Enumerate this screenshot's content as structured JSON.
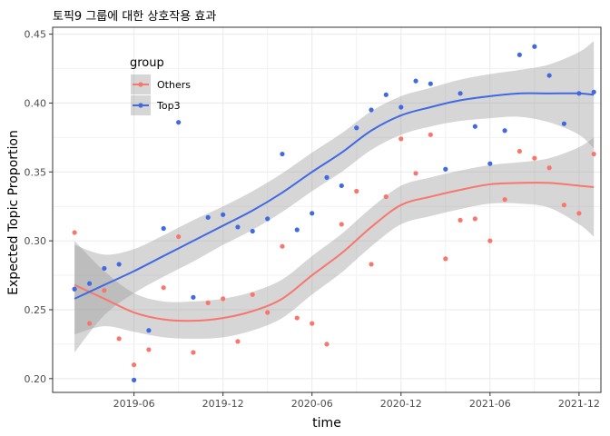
{
  "chart_data": {
    "type": "scatter",
    "title": "토픽9 그룹에 대한 상호작용 효과",
    "xlabel": "time",
    "ylabel": "Expected Topic Proportion",
    "xlim": [
      2018.96,
      2022.04
    ],
    "ylim": [
      0.19,
      0.455
    ],
    "xticks": [
      {
        "value": 2019.417,
        "label": "2019-06"
      },
      {
        "value": 2019.917,
        "label": "2019-12"
      },
      {
        "value": 2020.417,
        "label": "2020-06"
      },
      {
        "value": 2020.917,
        "label": "2020-12"
      },
      {
        "value": 2021.417,
        "label": "2021-06"
      },
      {
        "value": 2021.917,
        "label": "2021-12"
      }
    ],
    "yticks": [
      0.2,
      0.25,
      0.3,
      0.35,
      0.4,
      0.45
    ],
    "grid": true,
    "legend": {
      "title": "group",
      "position": "top-left"
    },
    "series": [
      {
        "name": "Others",
        "color": "#F8766D",
        "points": [
          [
            2019.083,
            0.306
          ],
          [
            2019.167,
            0.24
          ],
          [
            2019.25,
            0.264
          ],
          [
            2019.333,
            0.229
          ],
          [
            2019.417,
            0.21
          ],
          [
            2019.5,
            0.221
          ],
          [
            2019.583,
            0.266
          ],
          [
            2019.667,
            0.303
          ],
          [
            2019.75,
            0.219
          ],
          [
            2019.833,
            0.255
          ],
          [
            2019.917,
            0.258
          ],
          [
            2020.0,
            0.227
          ],
          [
            2020.083,
            0.261
          ],
          [
            2020.167,
            0.248
          ],
          [
            2020.25,
            0.296
          ],
          [
            2020.333,
            0.244
          ],
          [
            2020.417,
            0.24
          ],
          [
            2020.5,
            0.225
          ],
          [
            2020.583,
            0.312
          ],
          [
            2020.667,
            0.336
          ],
          [
            2020.75,
            0.283
          ],
          [
            2020.833,
            0.332
          ],
          [
            2020.917,
            0.374
          ],
          [
            2021.0,
            0.349
          ],
          [
            2021.083,
            0.377
          ],
          [
            2021.167,
            0.287
          ],
          [
            2021.25,
            0.315
          ],
          [
            2021.333,
            0.316
          ],
          [
            2021.417,
            0.3
          ],
          [
            2021.5,
            0.33
          ],
          [
            2021.583,
            0.365
          ],
          [
            2021.667,
            0.36
          ],
          [
            2021.75,
            0.353
          ],
          [
            2021.833,
            0.326
          ],
          [
            2021.917,
            0.32
          ],
          [
            2022.0,
            0.363
          ]
        ],
        "smooth": [
          [
            2019.083,
            0.268
          ],
          [
            2019.25,
            0.258
          ],
          [
            2019.417,
            0.248
          ],
          [
            2019.583,
            0.243
          ],
          [
            2019.75,
            0.242
          ],
          [
            2019.917,
            0.244
          ],
          [
            2020.083,
            0.249
          ],
          [
            2020.25,
            0.258
          ],
          [
            2020.417,
            0.275
          ],
          [
            2020.583,
            0.291
          ],
          [
            2020.75,
            0.31
          ],
          [
            2020.917,
            0.326
          ],
          [
            2021.083,
            0.332
          ],
          [
            2021.25,
            0.337
          ],
          [
            2021.417,
            0.341
          ],
          [
            2021.583,
            0.342
          ],
          [
            2021.75,
            0.342
          ],
          [
            2021.917,
            0.34
          ],
          [
            2022.0,
            0.339
          ]
        ],
        "band_upper": [
          [
            2019.083,
            0.3
          ],
          [
            2019.25,
            0.278
          ],
          [
            2019.417,
            0.262
          ],
          [
            2019.583,
            0.256
          ],
          [
            2019.75,
            0.256
          ],
          [
            2019.917,
            0.258
          ],
          [
            2020.083,
            0.263
          ],
          [
            2020.25,
            0.272
          ],
          [
            2020.417,
            0.289
          ],
          [
            2020.583,
            0.305
          ],
          [
            2020.75,
            0.324
          ],
          [
            2020.917,
            0.34
          ],
          [
            2021.083,
            0.346
          ],
          [
            2021.25,
            0.351
          ],
          [
            2021.417,
            0.355
          ],
          [
            2021.583,
            0.357
          ],
          [
            2021.75,
            0.36
          ],
          [
            2021.917,
            0.368
          ],
          [
            2022.0,
            0.375
          ]
        ],
        "band_lower": [
          [
            2019.083,
            0.232
          ],
          [
            2019.25,
            0.238
          ],
          [
            2019.417,
            0.234
          ],
          [
            2019.583,
            0.23
          ],
          [
            2019.75,
            0.229
          ],
          [
            2019.917,
            0.23
          ],
          [
            2020.083,
            0.235
          ],
          [
            2020.25,
            0.244
          ],
          [
            2020.417,
            0.261
          ],
          [
            2020.583,
            0.277
          ],
          [
            2020.75,
            0.296
          ],
          [
            2020.917,
            0.312
          ],
          [
            2021.083,
            0.318
          ],
          [
            2021.25,
            0.323
          ],
          [
            2021.417,
            0.327
          ],
          [
            2021.583,
            0.327
          ],
          [
            2021.75,
            0.324
          ],
          [
            2021.917,
            0.312
          ],
          [
            2022.0,
            0.303
          ]
        ]
      },
      {
        "name": "Top3",
        "color": "#4169E1",
        "points": [
          [
            2019.083,
            0.265
          ],
          [
            2019.167,
            0.269
          ],
          [
            2019.25,
            0.28
          ],
          [
            2019.333,
            0.283
          ],
          [
            2019.417,
            0.199
          ],
          [
            2019.5,
            0.235
          ],
          [
            2019.583,
            0.309
          ],
          [
            2019.667,
            0.386
          ],
          [
            2019.75,
            0.259
          ],
          [
            2019.833,
            0.317
          ],
          [
            2019.917,
            0.319
          ],
          [
            2020.0,
            0.31
          ],
          [
            2020.083,
            0.307
          ],
          [
            2020.167,
            0.316
          ],
          [
            2020.25,
            0.363
          ],
          [
            2020.333,
            0.308
          ],
          [
            2020.417,
            0.32
          ],
          [
            2020.5,
            0.346
          ],
          [
            2020.583,
            0.34
          ],
          [
            2020.667,
            0.382
          ],
          [
            2020.75,
            0.395
          ],
          [
            2020.833,
            0.406
          ],
          [
            2020.917,
            0.397
          ],
          [
            2021.0,
            0.416
          ],
          [
            2021.083,
            0.414
          ],
          [
            2021.167,
            0.352
          ],
          [
            2021.25,
            0.407
          ],
          [
            2021.333,
            0.383
          ],
          [
            2021.417,
            0.356
          ],
          [
            2021.5,
            0.38
          ],
          [
            2021.583,
            0.435
          ],
          [
            2021.667,
            0.441
          ],
          [
            2021.75,
            0.42
          ],
          [
            2021.833,
            0.385
          ],
          [
            2021.917,
            0.407
          ],
          [
            2022.0,
            0.408
          ]
        ],
        "smooth": [
          [
            2019.083,
            0.258
          ],
          [
            2019.25,
            0.268
          ],
          [
            2019.417,
            0.278
          ],
          [
            2019.583,
            0.289
          ],
          [
            2019.75,
            0.3
          ],
          [
            2019.917,
            0.311
          ],
          [
            2020.083,
            0.322
          ],
          [
            2020.25,
            0.335
          ],
          [
            2020.417,
            0.35
          ],
          [
            2020.583,
            0.364
          ],
          [
            2020.75,
            0.38
          ],
          [
            2020.917,
            0.391
          ],
          [
            2021.083,
            0.397
          ],
          [
            2021.25,
            0.402
          ],
          [
            2021.417,
            0.405
          ],
          [
            2021.583,
            0.407
          ],
          [
            2021.75,
            0.407
          ],
          [
            2021.917,
            0.407
          ],
          [
            2022.0,
            0.406
          ]
        ],
        "band_upper": [
          [
            2019.083,
            0.297
          ],
          [
            2019.25,
            0.29
          ],
          [
            2019.417,
            0.294
          ],
          [
            2019.583,
            0.304
          ],
          [
            2019.75,
            0.315
          ],
          [
            2019.917,
            0.325
          ],
          [
            2020.083,
            0.336
          ],
          [
            2020.25,
            0.349
          ],
          [
            2020.417,
            0.364
          ],
          [
            2020.583,
            0.378
          ],
          [
            2020.75,
            0.394
          ],
          [
            2020.917,
            0.405
          ],
          [
            2021.083,
            0.411
          ],
          [
            2021.25,
            0.417
          ],
          [
            2021.417,
            0.421
          ],
          [
            2021.583,
            0.424
          ],
          [
            2021.75,
            0.428
          ],
          [
            2021.917,
            0.437
          ],
          [
            2022.0,
            0.445
          ]
        ],
        "band_lower": [
          [
            2019.083,
            0.219
          ],
          [
            2019.25,
            0.246
          ],
          [
            2019.417,
            0.262
          ],
          [
            2019.583,
            0.274
          ],
          [
            2019.75,
            0.285
          ],
          [
            2019.917,
            0.297
          ],
          [
            2020.083,
            0.308
          ],
          [
            2020.25,
            0.321
          ],
          [
            2020.417,
            0.336
          ],
          [
            2020.583,
            0.35
          ],
          [
            2020.75,
            0.366
          ],
          [
            2020.917,
            0.377
          ],
          [
            2021.083,
            0.383
          ],
          [
            2021.25,
            0.387
          ],
          [
            2021.417,
            0.389
          ],
          [
            2021.583,
            0.39
          ],
          [
            2021.75,
            0.386
          ],
          [
            2021.917,
            0.377
          ],
          [
            2022.0,
            0.367
          ]
        ]
      }
    ]
  }
}
